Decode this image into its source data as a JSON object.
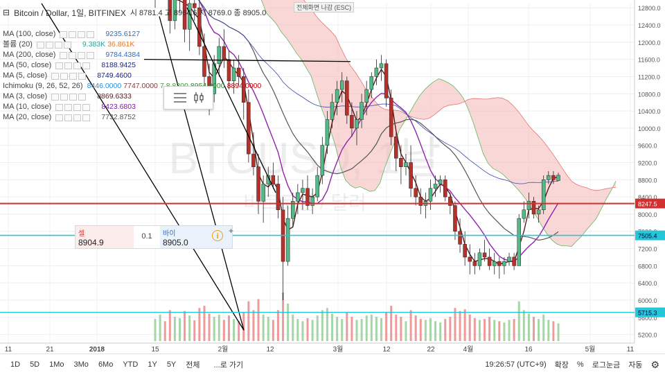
{
  "header": {
    "symbol_title": "Bitcoin / Dollar, 1일, BITFINEX",
    "ohlc": "시 8781.4  고 8964.6  저 8769.0  종 8905.0",
    "esc_label": "전체화면 나감 (ESC)"
  },
  "watermark": {
    "symbol": "BTCUSD, 1날",
    "subtitle": "비트코인 / 달러"
  },
  "indicators": [
    {
      "name": "MA (100, close)",
      "value": "9235.6127",
      "color": "#2b6cc4"
    },
    {
      "name": "볼륨 (20)",
      "value": "9.383K",
      "value2": "36.861K",
      "color": "#26a69a",
      "color2": "#e8742a"
    },
    {
      "name": "MA (200, close)",
      "value": "9784.4384",
      "color": "#2b6cc4"
    },
    {
      "name": "MA (50, close)",
      "value": "8188.9425",
      "color": "#1a237e"
    },
    {
      "name": "MA (5, close)",
      "value": "8749.4600",
      "color": "#1a237e"
    },
    {
      "name": "Ichimoku (9, 26, 52, 26)",
      "values": [
        "8446.0000",
        "7747.0000",
        "7.8.8200",
        "8954.9000",
        "8894.0000"
      ],
      "colors": [
        "#2b8ed8",
        "#8b3a3a",
        "#3aa03a",
        "#2a8a2a",
        "#c00000"
      ]
    },
    {
      "name": "MA (3, close)",
      "value": "8869.6333",
      "color": "#5a1a1a"
    },
    {
      "name": "MA (10, close)",
      "value": "8423.6803",
      "color": "#7b1fa2"
    },
    {
      "name": "MA (20, close)",
      "value": "7732.8752",
      "color": "#555555"
    }
  ],
  "trade": {
    "sell_label": "셀",
    "sell_price": "8904.9",
    "spread": "0.1",
    "buy_label": "바이",
    "buy_price": "8905.0",
    "info_icon": "info-icon",
    "plus": "+"
  },
  "price_badges": [
    {
      "label": "8247.5",
      "value": 8247.5,
      "color": "#d32f2f"
    },
    {
      "label": "7505.4",
      "value": 7505.4,
      "color": "#26c6da"
    },
    {
      "label": "5715.3",
      "value": 5715.3,
      "color": "#26c6da"
    }
  ],
  "toolbar": {
    "ranges": [
      "1D",
      "5D",
      "1Mo",
      "3Mo",
      "6Mo",
      "YTD",
      "1Y",
      "5Y",
      "전체"
    ],
    "goto": "...로 가기",
    "clock": "19:26:57 (UTC+9)",
    "expand": "확장",
    "percent": "%",
    "log": "로그눈금",
    "auto": "자동",
    "settings_icon": "gear-icon"
  },
  "chart_data": {
    "type": "candlestick",
    "x_tick_labels": [
      "11",
      "21",
      "2018",
      "15",
      "2월",
      "12",
      "3월",
      "12",
      "22",
      "4월",
      "16",
      "5월",
      "11"
    ],
    "y_tick_labels": [
      "12800.0",
      "12400.0",
      "12000.0",
      "11600.0",
      "11200.0",
      "10800.0",
      "10400.0",
      "10000.0",
      "9600.0",
      "9200.0",
      "8800.0",
      "8400.0",
      "8000.0",
      "7600.0",
      "7200.0",
      "6800.0",
      "6400.0",
      "6000.0",
      "5600.0",
      "5200.0"
    ],
    "y_range": [
      5000,
      12900
    ],
    "candles": [
      [
        13300,
        13800,
        12800,
        13500
      ],
      [
        13500,
        14200,
        13000,
        13900
      ],
      [
        13900,
        14500,
        13200,
        13400
      ],
      [
        13400,
        13700,
        12200,
        12500
      ],
      [
        12500,
        13300,
        12300,
        13100
      ],
      [
        13100,
        13700,
        12700,
        13300
      ],
      [
        13300,
        13500,
        12000,
        12300
      ],
      [
        12300,
        13000,
        11800,
        12900
      ],
      [
        12900,
        13300,
        12500,
        12800
      ],
      [
        12800,
        13100,
        11700,
        11900
      ],
      [
        11900,
        12200,
        10600,
        11200
      ],
      [
        11200,
        11500,
        10300,
        10800
      ],
      [
        10800,
        11700,
        10600,
        11500
      ],
      [
        11500,
        12100,
        11200,
        11900
      ],
      [
        11900,
        12300,
        11400,
        11600
      ],
      [
        11600,
        11800,
        10900,
        11100
      ],
      [
        11100,
        11600,
        10800,
        11400
      ],
      [
        11400,
        11700,
        11000,
        11200
      ],
      [
        11200,
        11400,
        10200,
        10600
      ],
      [
        10600,
        10900,
        9200,
        9400
      ],
      [
        9400,
        9900,
        8900,
        9100
      ],
      [
        9100,
        9400,
        8000,
        8300
      ],
      [
        8300,
        8900,
        7800,
        8700
      ],
      [
        8700,
        9100,
        8400,
        8900
      ],
      [
        8900,
        9200,
        8600,
        8700
      ],
      [
        8700,
        8900,
        7900,
        8100
      ],
      [
        8100,
        8400,
        6000,
        6900
      ],
      [
        6900,
        8200,
        6800,
        7900
      ],
      [
        7900,
        8500,
        7700,
        8300
      ],
      [
        8300,
        8700,
        8000,
        8500
      ],
      [
        8500,
        8800,
        8100,
        8600
      ],
      [
        8600,
        8900,
        8100,
        8200
      ],
      [
        8200,
        8600,
        8000,
        8400
      ],
      [
        8400,
        9100,
        8300,
        8900
      ],
      [
        8900,
        9800,
        8700,
        9600
      ],
      [
        9600,
        10400,
        9400,
        10200
      ],
      [
        10200,
        10800,
        10000,
        10600
      ],
      [
        10600,
        11100,
        10300,
        10900
      ],
      [
        10900,
        11300,
        10600,
        11100
      ],
      [
        11100,
        11200,
        10100,
        10300
      ],
      [
        10300,
        10600,
        9800,
        10000
      ],
      [
        10000,
        10400,
        9600,
        10200
      ],
      [
        10200,
        10800,
        10000,
        10600
      ],
      [
        10600,
        11100,
        10300,
        10900
      ],
      [
        10900,
        11300,
        10700,
        11200
      ],
      [
        11200,
        11600,
        11000,
        11400
      ],
      [
        11400,
        11700,
        11100,
        11500
      ],
      [
        11500,
        11600,
        10500,
        10700
      ],
      [
        10700,
        10900,
        9600,
        9800
      ],
      [
        9800,
        9900,
        9000,
        9300
      ],
      [
        9300,
        9600,
        8700,
        9100
      ],
      [
        9100,
        9400,
        8900,
        9200
      ],
      [
        9200,
        9600,
        8400,
        8600
      ],
      [
        8600,
        8900,
        8200,
        8400
      ],
      [
        8400,
        8600,
        8000,
        8200
      ],
      [
        8200,
        8500,
        7900,
        8300
      ],
      [
        8300,
        8800,
        8100,
        8600
      ],
      [
        8600,
        8900,
        8400,
        8700
      ],
      [
        8700,
        8900,
        8500,
        8800
      ],
      [
        8800,
        8900,
        8300,
        8400
      ],
      [
        8400,
        8500,
        8000,
        8200
      ],
      [
        8200,
        8300,
        7400,
        7600
      ],
      [
        7600,
        7900,
        7100,
        7300
      ],
      [
        7300,
        7600,
        6800,
        7000
      ],
      [
        7000,
        7300,
        6600,
        6900
      ],
      [
        6900,
        7100,
        6600,
        6800
      ],
      [
        6800,
        7200,
        6700,
        7100
      ],
      [
        7100,
        7400,
        6900,
        7000
      ],
      [
        7000,
        7200,
        6700,
        6800
      ],
      [
        6800,
        7100,
        6600,
        6900
      ],
      [
        6900,
        7000,
        6500,
        6800
      ],
      [
        6800,
        7000,
        6600,
        6900
      ],
      [
        6900,
        7100,
        6800,
        7000
      ],
      [
        7000,
        7100,
        6700,
        6800
      ],
      [
        6800,
        8000,
        6800,
        7900
      ],
      [
        7900,
        8300,
        7800,
        8100
      ],
      [
        8100,
        8500,
        7900,
        8300
      ],
      [
        8300,
        8400,
        7900,
        8000
      ],
      [
        8000,
        8200,
        7800,
        8100
      ],
      [
        8100,
        8900,
        8000,
        8800
      ],
      [
        8800,
        9000,
        8700,
        8900
      ],
      [
        8900,
        9000,
        8700,
        8800
      ],
      [
        8781.4,
        8964.6,
        8769.0,
        8905.0
      ]
    ],
    "volume": [
      50,
      60,
      45,
      70,
      55,
      52,
      68,
      58,
      47,
      75,
      80,
      62,
      55,
      60,
      48,
      58,
      50,
      45,
      65,
      90,
      70,
      95,
      60,
      55,
      48,
      70,
      110,
      85,
      60,
      50,
      45,
      52,
      48,
      58,
      70,
      75,
      62,
      55,
      50,
      65,
      55,
      48,
      50,
      58,
      60,
      55,
      52,
      65,
      80,
      60,
      55,
      45,
      70,
      58,
      50,
      48,
      52,
      45,
      42,
      50,
      55,
      75,
      68,
      72,
      60,
      52,
      48,
      50,
      55,
      48,
      45,
      42,
      48,
      50,
      90,
      70,
      62,
      55,
      50,
      60,
      48,
      45,
      40
    ]
  }
}
